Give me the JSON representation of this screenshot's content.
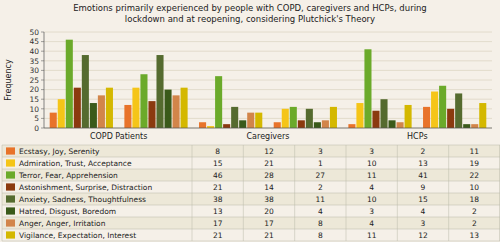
{
  "chart_data": {
    "type": "bar",
    "title": "Emotions primarily experienced by people with COPD, caregivers and HCPs, during\nlockdown and at reopening, considering Plutchick's Theory",
    "y_label": "Frequency",
    "categories": [
      "COPD Patients",
      null,
      "Caregivers",
      null,
      "HCPs",
      null
    ],
    "series": [
      {
        "name": "Ecstasy, Joy, Serenity",
        "color": "#E8732A",
        "values": [
          8,
          12,
          3,
          3,
          2,
          11
        ]
      },
      {
        "name": "Admiration, Trust, Acceptance",
        "color": "#F5C518",
        "values": [
          15,
          21,
          1,
          10,
          13,
          19
        ]
      },
      {
        "name": "Terror, Fear, Apprehension",
        "color": "#6BAA2A",
        "values": [
          46,
          28,
          27,
          11,
          41,
          22
        ]
      },
      {
        "name": "Astonishment, Surprise, Distraction",
        "color": "#8B3A0F",
        "values": [
          21,
          14,
          2,
          4,
          9,
          10
        ]
      },
      {
        "name": "Anxiety, Sadness, Thoughtfulness",
        "color": "#556B2F",
        "values": [
          38,
          38,
          11,
          10,
          15,
          18
        ]
      },
      {
        "name": "Hatred, Disgust, Boredom",
        "color": "#3A5A1A",
        "values": [
          13,
          20,
          4,
          3,
          4,
          2
        ]
      },
      {
        "name": "Anger, Anger, Irritation",
        "color": "#D2854A",
        "values": [
          17,
          17,
          8,
          4,
          3,
          2
        ]
      },
      {
        "name": "Vigilance, Expectation, Interest",
        "color": "#D4B800",
        "values": [
          21,
          21,
          8,
          11,
          12,
          13
        ]
      }
    ],
    "ylim": [
      0,
      50
    ],
    "yticks": [
      0,
      5,
      10,
      15,
      20,
      25,
      30,
      35,
      40,
      45,
      50
    ],
    "grid": true
  }
}
